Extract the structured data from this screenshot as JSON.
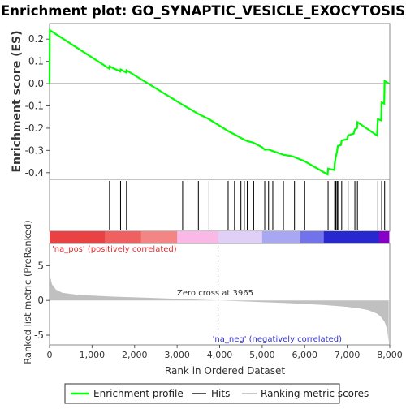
{
  "chart_data": {
    "type": "line",
    "title": "Enrichment plot: GO_SYNAPTIC_VESICLE_EXOCYTOSIS",
    "xlabel": "Rank in Ordered Dataset",
    "es_ylabel": "Enrichment score (ES)",
    "rank_ylabel": "Ranked list metric (PreRanked)",
    "xlim": [
      0,
      8000
    ],
    "es_ylim": [
      -0.43,
      0.27
    ],
    "rank_ylim": [
      -6.4,
      8.2
    ],
    "x_ticks": [
      0,
      1000,
      2000,
      3000,
      4000,
      5000,
      6000,
      7000,
      8000
    ],
    "x_tick_labels": [
      "0",
      "1,000",
      "2,000",
      "3,000",
      "4,000",
      "5,000",
      "6,000",
      "7,000",
      "8,000"
    ],
    "es_ticks": [
      0.2,
      0.1,
      0.0,
      -0.1,
      -0.2,
      -0.3,
      -0.4
    ],
    "es_tick_labels": [
      "0.2",
      "0.1",
      "0.0",
      "-0.1",
      "-0.2",
      "-0.3",
      "-0.4"
    ],
    "rank_ticks": [
      5,
      0,
      -5
    ],
    "rank_tick_labels": [
      "5",
      "0",
      "-5"
    ],
    "zero_cross_label": "Zero cross at 3965",
    "zero_cross_x": 3965,
    "pos_label": "'na_pos' (positively correlated)",
    "neg_label": "'na_neg' (negatively correlated)",
    "enrichment_profile": {
      "name": "Enrichment profile",
      "color": "#00ff00",
      "points": [
        [
          0,
          0.0
        ],
        [
          5,
          0.24
        ],
        [
          1400,
          0.068
        ],
        [
          1410,
          0.078
        ],
        [
          1660,
          0.055
        ],
        [
          1670,
          0.064
        ],
        [
          1800,
          0.05
        ],
        [
          1810,
          0.06
        ],
        [
          3120,
          -0.094
        ],
        [
          3130,
          -0.095
        ],
        [
          3500,
          -0.136
        ],
        [
          3750,
          -0.16
        ],
        [
          4200,
          -0.213
        ],
        [
          4350,
          -0.228
        ],
        [
          4500,
          -0.244
        ],
        [
          4580,
          -0.252
        ],
        [
          4650,
          -0.258
        ],
        [
          4800,
          -0.266
        ],
        [
          5000,
          -0.286
        ],
        [
          5060,
          -0.297
        ],
        [
          5150,
          -0.296
        ],
        [
          5250,
          -0.303
        ],
        [
          5500,
          -0.32
        ],
        [
          5700,
          -0.326
        ],
        [
          5760,
          -0.33
        ],
        [
          6000,
          -0.349
        ],
        [
          6540,
          -0.408
        ],
        [
          6550,
          -0.382
        ],
        [
          6700,
          -0.388
        ],
        [
          6705,
          -0.36
        ],
        [
          6730,
          -0.33
        ],
        [
          6760,
          -0.305
        ],
        [
          6780,
          -0.28
        ],
        [
          6850,
          -0.276
        ],
        [
          6870,
          -0.255
        ],
        [
          7000,
          -0.25
        ],
        [
          7020,
          -0.232
        ],
        [
          7150,
          -0.225
        ],
        [
          7180,
          -0.205
        ],
        [
          7230,
          -0.2
        ],
        [
          7240,
          -0.173
        ],
        [
          7700,
          -0.233
        ],
        [
          7720,
          -0.16
        ],
        [
          7800,
          -0.165
        ],
        [
          7810,
          -0.085
        ],
        [
          7870,
          -0.09
        ],
        [
          7880,
          0.012
        ],
        [
          7980,
          0.0
        ]
      ]
    },
    "hits": {
      "name": "Hits",
      "color": "#000000",
      "positions": [
        1410,
        1670,
        1810,
        3130,
        3500,
        3750,
        4200,
        4350,
        4500,
        4580,
        4650,
        4800,
        5060,
        5150,
        5250,
        5500,
        5760,
        6000,
        6550,
        6705,
        6730,
        6760,
        6780,
        6870,
        7020,
        7180,
        7240,
        7720,
        7810,
        7880
      ]
    },
    "ranking_metric": {
      "name": "Ranking metric scores",
      "color": "#c0c0c0",
      "points": [
        [
          0,
          5.5
        ],
        [
          20,
          3.3
        ],
        [
          60,
          2.3
        ],
        [
          150,
          1.55
        ],
        [
          300,
          1.1
        ],
        [
          600,
          0.85
        ],
        [
          1000,
          0.7
        ],
        [
          1500,
          0.55
        ],
        [
          2000,
          0.44
        ],
        [
          2500,
          0.35
        ],
        [
          3000,
          0.22
        ],
        [
          3500,
          0.1
        ],
        [
          3965,
          0.0
        ],
        [
          4500,
          -0.12
        ],
        [
          5000,
          -0.24
        ],
        [
          5500,
          -0.36
        ],
        [
          6000,
          -0.5
        ],
        [
          6500,
          -0.68
        ],
        [
          7000,
          -0.92
        ],
        [
          7300,
          -1.15
        ],
        [
          7500,
          -1.4
        ],
        [
          7700,
          -1.9
        ],
        [
          7800,
          -2.4
        ],
        [
          7880,
          -3.1
        ],
        [
          7940,
          -4.2
        ],
        [
          7975,
          -6.0
        ]
      ]
    },
    "legend": {
      "position": "bottom",
      "entries": [
        "Enrichment profile",
        "Hits",
        "Ranking metric scores"
      ]
    },
    "heatmap_colors": [
      "#ea4242",
      "#f06060",
      "#f48585",
      "#fab8e6",
      "#e0d0f8",
      "#a8a8f2",
      "#7272ea",
      "#2828d0",
      "#8800c8"
    ],
    "grid": false
  }
}
